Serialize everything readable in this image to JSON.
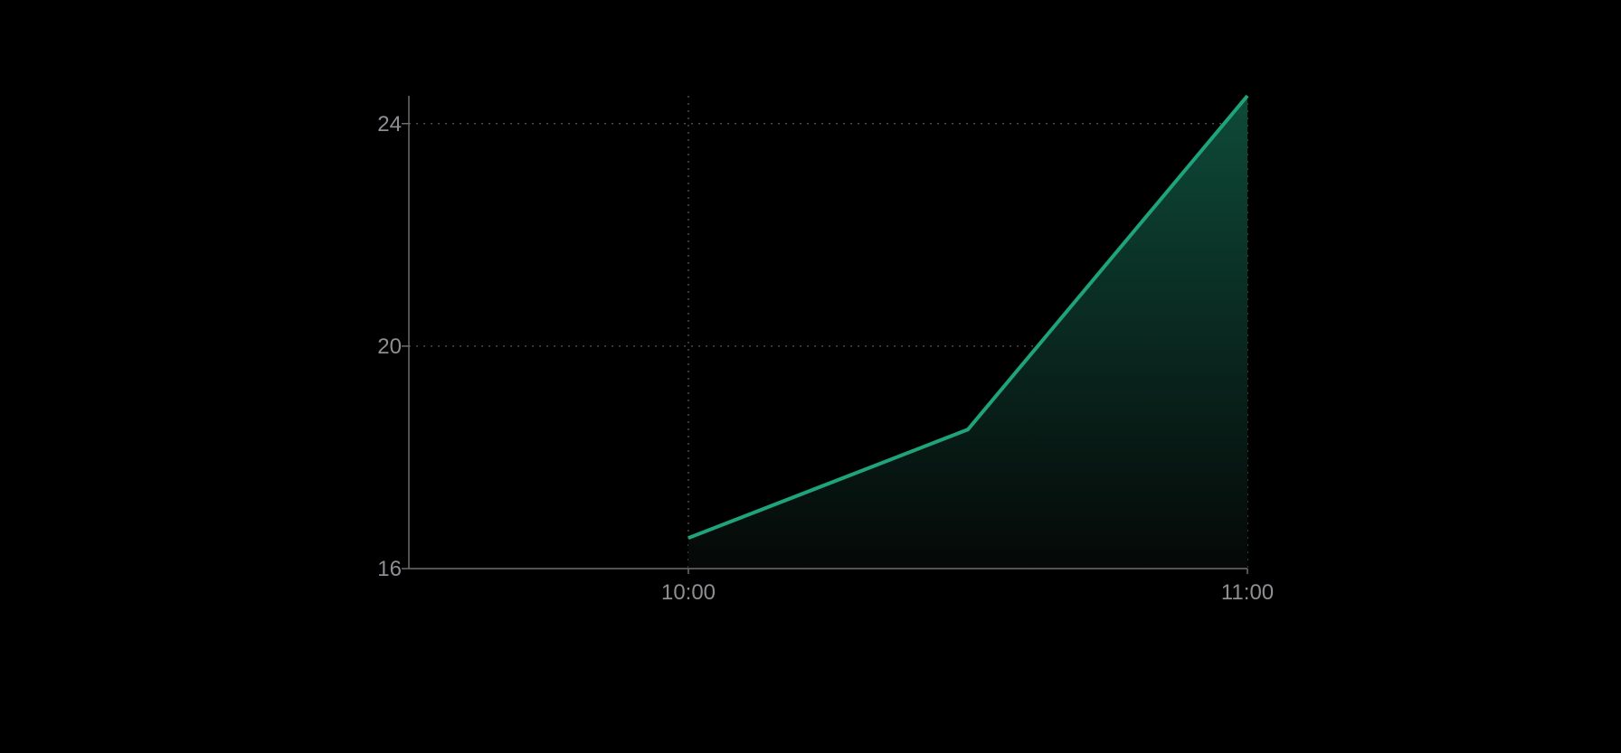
{
  "chart_data": {
    "type": "area",
    "title": "",
    "xlabel": "",
    "ylabel": "",
    "x": [
      "09:30",
      "10:00",
      "10:30",
      "11:00"
    ],
    "x_tick_labels": [
      "10:00",
      "11:00"
    ],
    "x_tick_values": [
      "10:00",
      "11:00"
    ],
    "y_tick_labels": [
      "24",
      "20",
      "16"
    ],
    "y_tick_values": [
      24,
      20,
      16
    ],
    "xlim": [
      "09:30",
      "11:00"
    ],
    "ylim": [
      16,
      24.5
    ],
    "grid": true,
    "legend": "none",
    "series": [
      {
        "points": [
          {
            "x": "10:00",
            "y": 16.55
          },
          {
            "x": "10:30",
            "y": 18.5
          },
          {
            "x": "11:00",
            "y": 24.5
          }
        ],
        "color": "#1fa37a"
      }
    ],
    "colors": {
      "background": "#000000",
      "line": "#1fa37a",
      "fill_top": "#0e4a38",
      "fill_bottom": "#050807",
      "grid": "#4a4a4d",
      "axis": "#6e6e72",
      "tick_text": "#8e8e93"
    }
  }
}
